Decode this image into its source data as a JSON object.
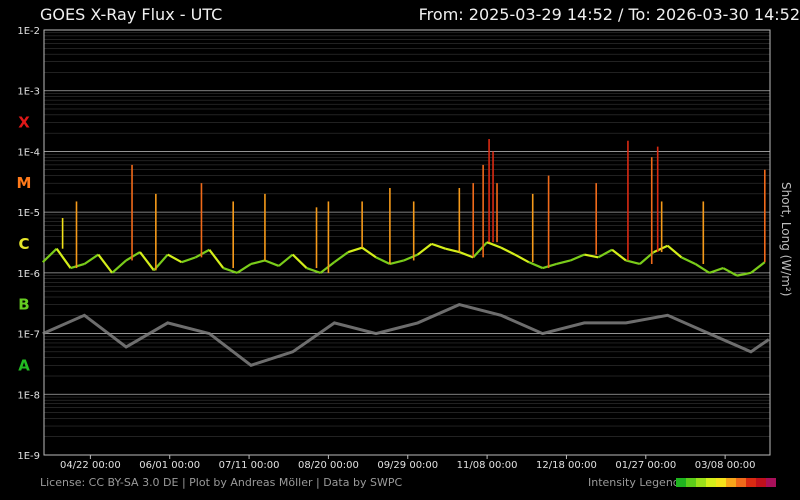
{
  "header": {
    "title": "GOES X-Ray Flux - UTC",
    "range": "From: 2025-03-29 14:52  /  To: 2026-03-30 14:52"
  },
  "side_label": "Short, Long (W/m²)",
  "footer": {
    "license": "License: CC BY-SA 3.0 DE | Plot by Andreas Möller | Data by SWPC",
    "legend_label": "Intensity Legend",
    "legend_colors": [
      "#1fb41f",
      "#5ccd1a",
      "#9be01a",
      "#d5ee1a",
      "#f4e21a",
      "#f7a51a",
      "#f06a1a",
      "#d92a12",
      "#c0101c",
      "#a8105a"
    ]
  },
  "colors": {
    "short_channel": "#808080",
    "class_A": "#22bb22",
    "class_B": "#66cc22",
    "class_C": "#e8e82a",
    "class_M": "#ff7a1a",
    "class_X": "#e01818",
    "grid": "#7a7a7a"
  },
  "chart_data": {
    "type": "line",
    "title": "GOES X-Ray Flux - UTC",
    "ylabel": "Short, Long (W/m²)",
    "yscale": "log",
    "ylim": [
      1e-09,
      0.01
    ],
    "xlim": [
      "2025-03-29 14:52",
      "2026-03-30 14:52"
    ],
    "y_ticks": [
      "1E-9",
      "1E-8",
      "1E-7",
      "1E-6",
      "1E-5",
      "1E-4",
      "1E-3",
      "1E-2"
    ],
    "x_ticks": [
      "04/22 00:00",
      "06/01 00:00",
      "07/11 00:00",
      "08/20 00:00",
      "09/29 00:00",
      "11/08 00:00",
      "12/18 00:00",
      "01/27 00:00",
      "03/08 00:00"
    ],
    "classes": [
      {
        "label": "A",
        "flux": 3e-08
      },
      {
        "label": "B",
        "flux": 3e-07
      },
      {
        "label": "C",
        "flux": 3e-06
      },
      {
        "label": "M",
        "flux": 3e-05
      },
      {
        "label": "X",
        "flux": 0.0003
      }
    ],
    "grid": true,
    "series": [
      {
        "name": "Long",
        "color": "intensity-scaled",
        "x": [
          "2025-03-29",
          "2025-04-05",
          "2025-04-12",
          "2025-04-19",
          "2025-04-26",
          "2025-05-03",
          "2025-05-10",
          "2025-05-17",
          "2025-05-24",
          "2025-05-31",
          "2025-06-07",
          "2025-06-14",
          "2025-06-21",
          "2025-06-28",
          "2025-07-05",
          "2025-07-12",
          "2025-07-19",
          "2025-07-26",
          "2025-08-02",
          "2025-08-09",
          "2025-08-16",
          "2025-08-23",
          "2025-08-30",
          "2025-09-06",
          "2025-09-13",
          "2025-09-20",
          "2025-09-27",
          "2025-10-04",
          "2025-10-11",
          "2025-10-18",
          "2025-10-25",
          "2025-11-01",
          "2025-11-08",
          "2025-11-15",
          "2025-11-22",
          "2025-11-29",
          "2025-12-06",
          "2025-12-13",
          "2025-12-20",
          "2025-12-27",
          "2026-01-03",
          "2026-01-10",
          "2026-01-17",
          "2026-01-24",
          "2026-01-31",
          "2026-02-07",
          "2026-02-14",
          "2026-02-21",
          "2026-02-28",
          "2026-03-07",
          "2026-03-14",
          "2026-03-21",
          "2026-03-28"
        ],
        "y": [
          1.5e-06,
          2.5e-06,
          1.2e-06,
          1.4e-06,
          2e-06,
          1e-06,
          1.6e-06,
          2.2e-06,
          1.1e-06,
          2e-06,
          1.5e-06,
          1.8e-06,
          2.4e-06,
          1.2e-06,
          1e-06,
          1.4e-06,
          1.6e-06,
          1.3e-06,
          2e-06,
          1.2e-06,
          1e-06,
          1.5e-06,
          2.2e-06,
          2.6e-06,
          1.8e-06,
          1.4e-06,
          1.6e-06,
          2e-06,
          3e-06,
          2.5e-06,
          2.2e-06,
          1.8e-06,
          3.2e-06,
          2.6e-06,
          2e-06,
          1.5e-06,
          1.2e-06,
          1.4e-06,
          1.6e-06,
          2e-06,
          1.8e-06,
          2.4e-06,
          1.6e-06,
          1.4e-06,
          2.2e-06,
          2.8e-06,
          1.8e-06,
          1.4e-06,
          1e-06,
          1.2e-06,
          9e-07,
          1e-06,
          1.5e-06
        ]
      },
      {
        "name": "Short",
        "color": "#808080",
        "x": [
          "2025-03-29",
          "2025-04-19",
          "2025-05-10",
          "2025-05-31",
          "2025-06-21",
          "2025-07-12",
          "2025-08-02",
          "2025-08-23",
          "2025-09-13",
          "2025-10-04",
          "2025-10-25",
          "2025-11-15",
          "2025-12-06",
          "2025-12-27",
          "2026-01-17",
          "2026-02-07",
          "2026-02-28",
          "2026-03-21",
          "2026-03-30"
        ],
        "y": [
          1e-07,
          2e-07,
          6e-08,
          1.5e-07,
          1e-07,
          3e-08,
          5e-08,
          1.5e-07,
          1e-07,
          1.5e-07,
          3e-07,
          2e-07,
          1e-07,
          1.5e-07,
          1.5e-07,
          2e-07,
          1e-07,
          5e-08,
          8e-08
        ]
      }
    ],
    "flare_peaks": [
      {
        "t": "2025-04-08",
        "y": 8e-06
      },
      {
        "t": "2025-04-15",
        "y": 1.5e-05
      },
      {
        "t": "2025-05-13",
        "y": 6e-05
      },
      {
        "t": "2025-05-25",
        "y": 2e-05
      },
      {
        "t": "2025-06-17",
        "y": 3e-05
      },
      {
        "t": "2025-07-03",
        "y": 1.5e-05
      },
      {
        "t": "2025-07-19",
        "y": 2e-05
      },
      {
        "t": "2025-08-14",
        "y": 1.2e-05
      },
      {
        "t": "2025-08-20",
        "y": 1.5e-05
      },
      {
        "t": "2025-09-06",
        "y": 1.5e-05
      },
      {
        "t": "2025-09-20",
        "y": 2.5e-05
      },
      {
        "t": "2025-10-02",
        "y": 1.5e-05
      },
      {
        "t": "2025-10-25",
        "y": 2.5e-05
      },
      {
        "t": "2025-11-01",
        "y": 3e-05
      },
      {
        "t": "2025-11-06",
        "y": 6e-05
      },
      {
        "t": "2025-11-09",
        "y": 0.00016
      },
      {
        "t": "2025-11-11",
        "y": 0.0001
      },
      {
        "t": "2025-11-13",
        "y": 3e-05
      },
      {
        "t": "2025-12-01",
        "y": 2e-05
      },
      {
        "t": "2025-12-09",
        "y": 4e-05
      },
      {
        "t": "2026-01-02",
        "y": 3e-05
      },
      {
        "t": "2026-01-18",
        "y": 0.00015
      },
      {
        "t": "2026-01-30",
        "y": 8e-05
      },
      {
        "t": "2026-02-02",
        "y": 0.00012
      },
      {
        "t": "2026-02-04",
        "y": 1.5e-05
      },
      {
        "t": "2026-02-25",
        "y": 1.5e-05
      },
      {
        "t": "2026-03-28",
        "y": 5e-05
      }
    ]
  }
}
